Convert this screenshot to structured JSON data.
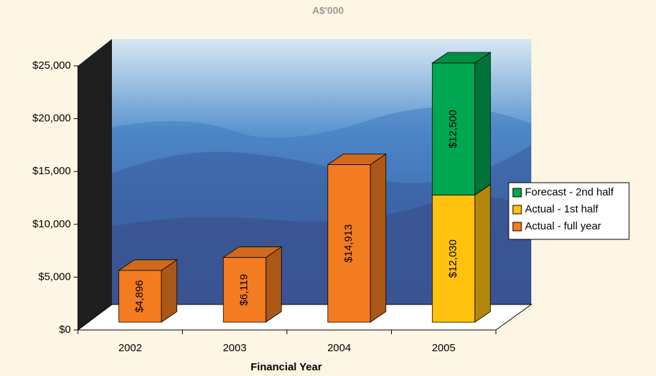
{
  "chart_data": {
    "type": "bar3d_stacked",
    "title": "A$'000",
    "x_label": "Financial Year",
    "categories": [
      "2002",
      "2003",
      "2004",
      "2005"
    ],
    "series": [
      {
        "name": "Actual - full year",
        "color": "#f47c20",
        "values": [
          4896,
          6119,
          14913,
          null
        ],
        "value_labels": [
          "$4,896",
          "$6,119",
          "$14,913",
          null
        ]
      },
      {
        "name": "Actual - 1st half",
        "color": "#ffc20e",
        "values": [
          null,
          null,
          null,
          12030
        ],
        "value_labels": [
          null,
          null,
          null,
          "$12,030"
        ]
      },
      {
        "name": "Forecast - 2nd half",
        "color": "#00a650",
        "values": [
          null,
          null,
          null,
          12500
        ],
        "value_labels": [
          null,
          null,
          null,
          "$12,500"
        ]
      }
    ],
    "ylim": [
      0,
      25000
    ],
    "yticks": [
      {
        "value": 0,
        "label": "$0"
      },
      {
        "value": 5000,
        "label": "$5,000"
      },
      {
        "value": 10000,
        "label": "$10,000"
      },
      {
        "value": 15000,
        "label": "$15,000"
      },
      {
        "value": 20000,
        "label": "$20,000"
      },
      {
        "value": 25000,
        "label": "$25,000"
      }
    ],
    "legend": "right"
  }
}
